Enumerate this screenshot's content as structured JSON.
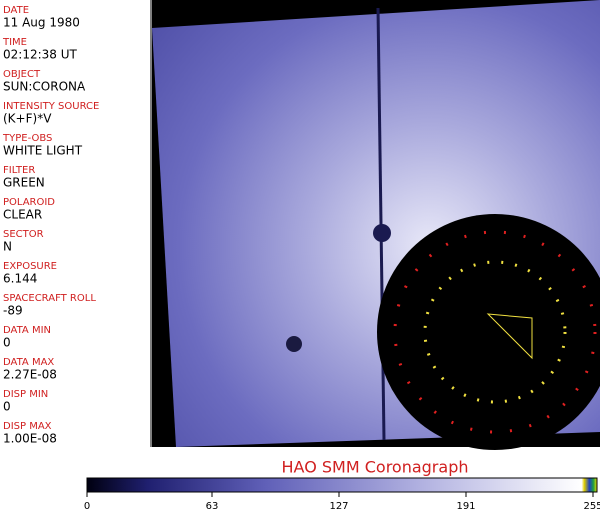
{
  "fields": [
    {
      "label": "DATE",
      "value": "11 Aug 1980"
    },
    {
      "label": "TIME",
      "value": "02:12:38 UT"
    },
    {
      "label": "OBJECT",
      "value": "SUN:CORONA"
    },
    {
      "label": "INTENSITY SOURCE",
      "value": "(K+F)*V"
    },
    {
      "label": "TYPE-OBS",
      "value": "WHITE LIGHT"
    },
    {
      "label": "FILTER",
      "value": "GREEN"
    },
    {
      "label": "POLAROID",
      "value": "CLEAR"
    },
    {
      "label": "SECTOR",
      "value": "N"
    },
    {
      "label": "EXPOSURE",
      "value": "6.144"
    },
    {
      "label": "SPACECRAFT ROLL",
      "value": "-89"
    },
    {
      "label": "DATA MIN",
      "value": "0"
    },
    {
      "label": "DATA MAX",
      "value": "2.27E-08"
    },
    {
      "label": "DISP MIN",
      "value": "0"
    },
    {
      "label": "DISP MAX",
      "value": "1.00E-08"
    }
  ],
  "title": "HAO  SMM  Coronagraph",
  "colorbar": {
    "range": [
      0,
      255
    ],
    "ticks": [
      0,
      63,
      127,
      191,
      255
    ]
  }
}
